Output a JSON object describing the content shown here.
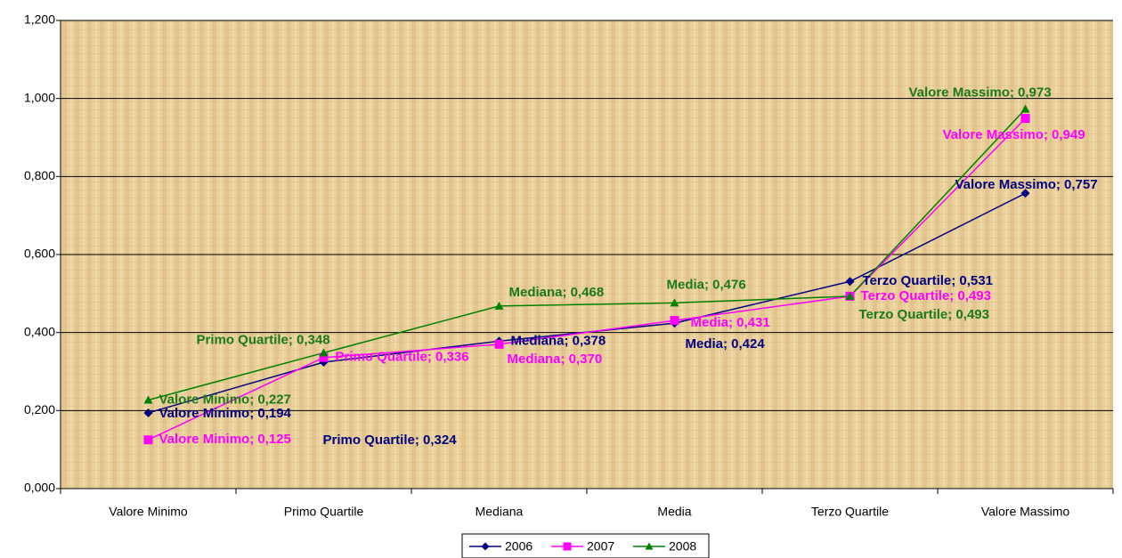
{
  "chart_data": {
    "type": "line",
    "categories": [
      "Valore Minimo",
      "Primo Quartile",
      "Mediana",
      "Media",
      "Terzo Quartile",
      "Valore Massimo"
    ],
    "series": [
      {
        "name": "2006",
        "color": "#000080",
        "marker": "diamond",
        "values": [
          0.194,
          0.324,
          0.378,
          0.424,
          0.531,
          0.757
        ],
        "value_labels": [
          "Valore Minimo; 0,194",
          "Primo Quartile; 0,324",
          "Mediana; 0,378",
          "Media; 0,424",
          "Terzo Quartile; 0,531",
          "Valore Massimo; 0,757"
        ]
      },
      {
        "name": "2007",
        "color": "#ff00ff",
        "marker": "square",
        "values": [
          0.125,
          0.336,
          0.37,
          0.431,
          0.493,
          0.949
        ],
        "value_labels": [
          "Valore Minimo; 0,125",
          "Primo Quartile; 0,336",
          "Mediana; 0,370",
          "Media; 0,431",
          "Terzo Quartile; 0,493",
          "Valore Massimo; 0,949"
        ]
      },
      {
        "name": "2008",
        "color": "#008000",
        "marker": "triangle",
        "values": [
          0.227,
          0.348,
          0.468,
          0.476,
          0.493,
          0.973
        ],
        "value_labels": [
          "Valore Minimo; 0,227",
          "Primo Quartile; 0,348",
          "Mediana; 0,468",
          "Media; 0,476",
          "Terzo Quartile; 0,493",
          "Valore Massimo; 0,973"
        ]
      }
    ],
    "ylim": [
      0,
      1.2
    ],
    "yticks": [
      {
        "value": 0,
        "label": "0,000"
      },
      {
        "value": 0.2,
        "label": "0,200"
      },
      {
        "value": 0.4,
        "label": "0,400"
      },
      {
        "value": 0.6,
        "label": "0,600"
      },
      {
        "value": 0.8,
        "label": "0,800"
      },
      {
        "value": 1.0,
        "label": "1,000"
      },
      {
        "value": 1.2,
        "label": "1,200"
      }
    ],
    "grid": true,
    "legend": "bottom"
  }
}
